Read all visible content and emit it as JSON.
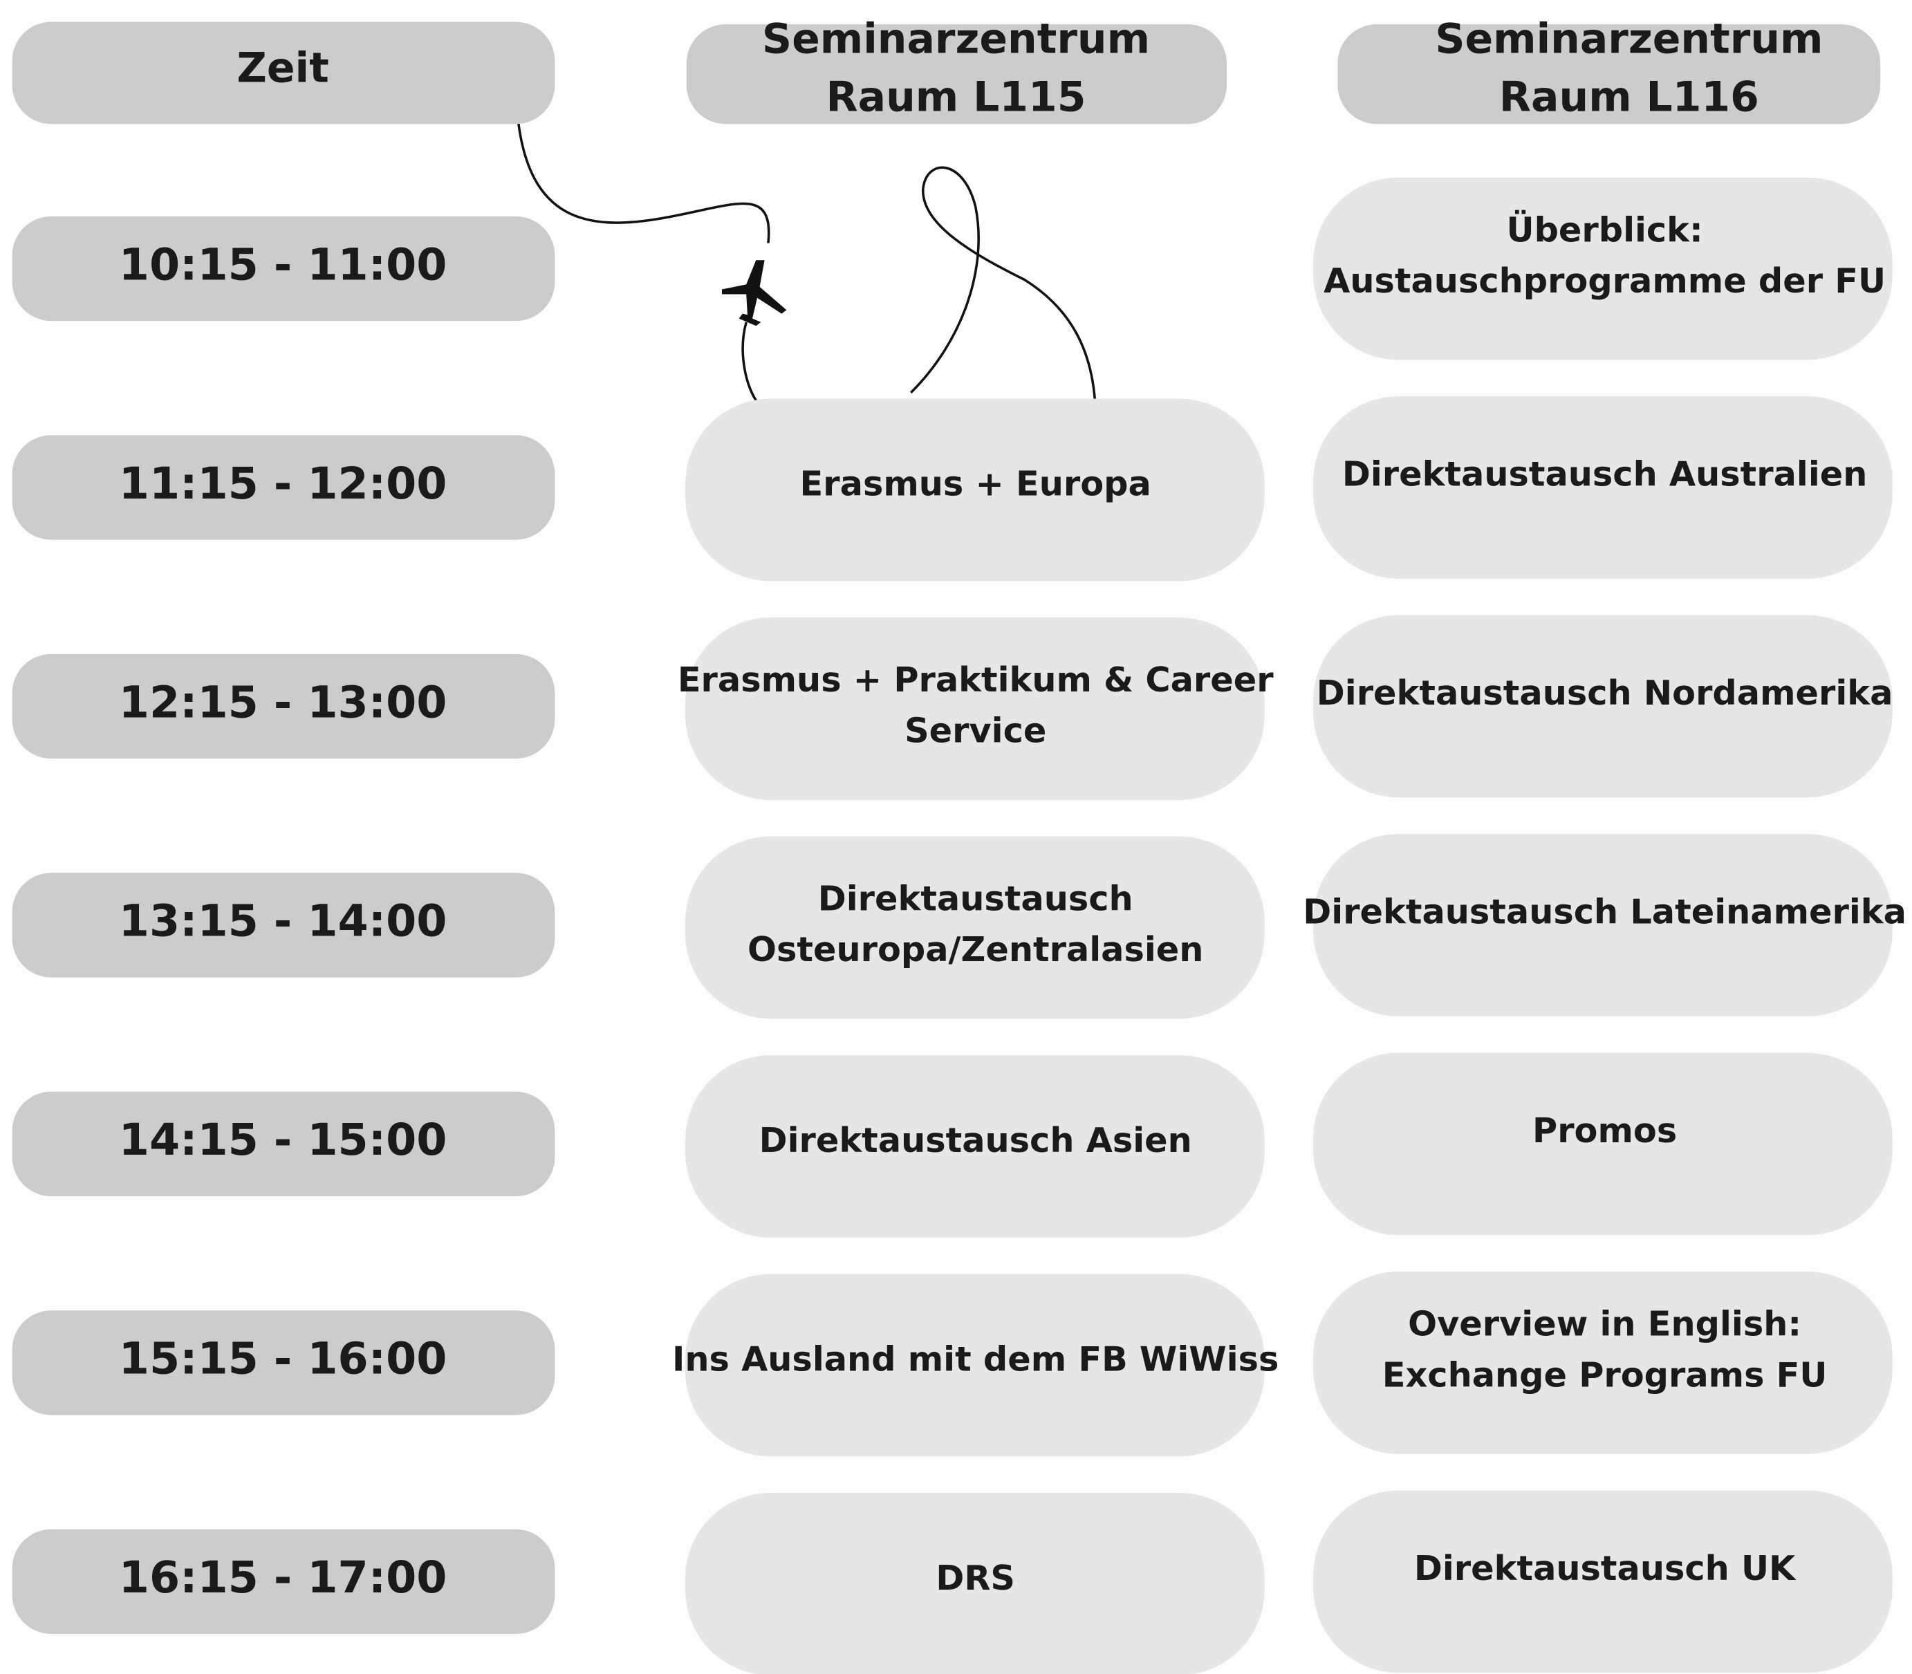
{
  "header": {
    "zeit": "Zeit",
    "room_a": [
      "Seminarzentrum",
      "Raum L115"
    ],
    "room_b": [
      "Seminarzentrum",
      "Raum L116"
    ]
  },
  "rows": [
    {
      "time": "10:15 - 11:00",
      "room_a": null,
      "room_b": [
        "Überblick:",
        "Austauschprogramme der FU"
      ]
    },
    {
      "time": "11:15 - 12:00",
      "room_a": [
        "Erasmus + Europa"
      ],
      "room_b": [
        "Direktaustausch Australien"
      ]
    },
    {
      "time": "12:15 - 13:00",
      "room_a": [
        "Erasmus + Praktikum & Career",
        "Service"
      ],
      "room_b": [
        "Direktaustausch Nordamerika"
      ]
    },
    {
      "time": "13:15 - 14:00",
      "room_a": [
        "Direktaustausch",
        "Osteuropa/Zentralasien"
      ],
      "room_b": [
        "Direktaustausch Lateinamerika"
      ]
    },
    {
      "time": "14:15 - 15:00",
      "room_a": [
        "Direktaustausch Asien"
      ],
      "room_b": [
        "Promos"
      ]
    },
    {
      "time": "15:15 - 16:00",
      "room_a": [
        "Ins Ausland mit dem FB WiWiss"
      ],
      "room_b": [
        "Overview in English:",
        "Exchange Programs FU"
      ]
    },
    {
      "time": "16:15 - 17:00",
      "room_a": [
        "DRS"
      ],
      "room_b": [
        "Direktaustausch UK"
      ]
    }
  ]
}
